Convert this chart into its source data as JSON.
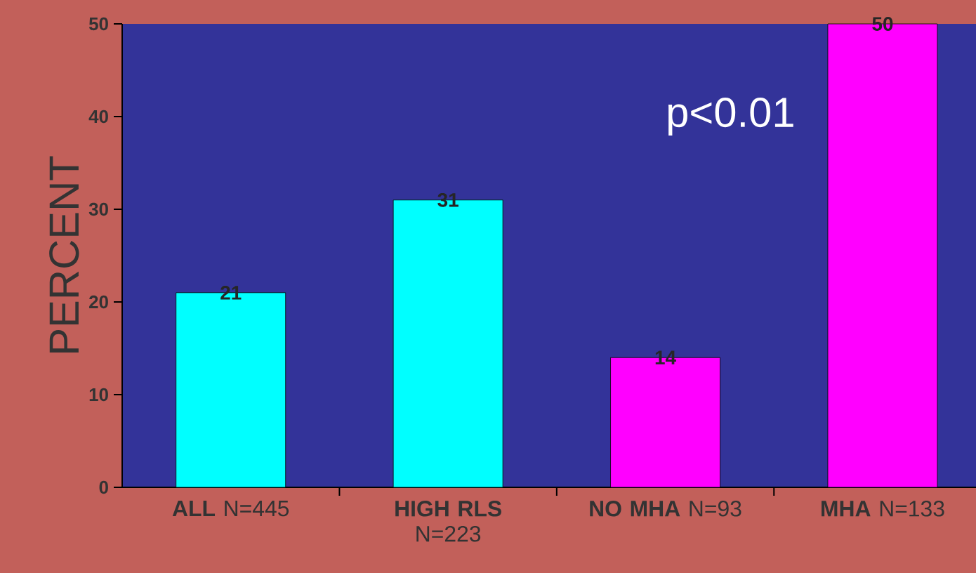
{
  "chart_data": {
    "type": "bar",
    "categories": [
      "**ALL** N=445",
      "**HIGH RLS** N=223",
      "**NO MHA** N=93",
      "**MHA** N=133"
    ],
    "values": [
      21,
      31,
      14,
      50
    ],
    "colors": [
      "#00ffff",
      "#00ffff",
      "#ff00ff",
      "#ff00ff"
    ],
    "ylabel": "PERCENT",
    "ylim": [
      0,
      50
    ],
    "yticks": [
      0,
      10,
      20,
      30,
      40,
      50
    ],
    "data_labels": true,
    "annotations": [
      "p<0.01"
    ]
  }
}
